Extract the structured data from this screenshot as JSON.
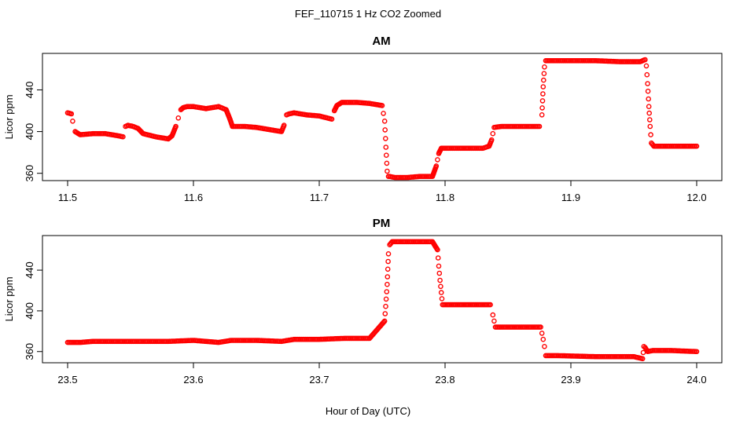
{
  "figure": {
    "title": "FEF_110715  1 Hz CO2 Zoomed",
    "xlabel": "Hour of Day (UTC)",
    "point_color": "#ff0000"
  },
  "chart_data": [
    {
      "type": "scatter",
      "title": "AM",
      "xlabel": "",
      "ylabel": "Licor ppm",
      "xlim": [
        11.48,
        12.02
      ],
      "ylim": [
        353,
        475
      ],
      "xticks": [
        11.5,
        11.6,
        11.7,
        11.8,
        11.9,
        12.0
      ],
      "xtick_labels": [
        "11.5",
        "11.6",
        "11.7",
        "11.8",
        "11.9",
        "12.0"
      ],
      "yticks": [
        360,
        400,
        440
      ],
      "ytick_labels": [
        "360",
        "400",
        "440"
      ],
      "grid": false,
      "series": [
        {
          "marker": "open-circle",
          "color": "#ff0000",
          "x": [
            11.5,
            11.503,
            11.504,
            11.506,
            11.51,
            11.52,
            11.53,
            11.54,
            11.544,
            11.546,
            11.548,
            11.552,
            11.556,
            11.56,
            11.57,
            11.58,
            11.583,
            11.586,
            11.588,
            11.59,
            11.592,
            11.595,
            11.6,
            11.61,
            11.62,
            11.626,
            11.629,
            11.631,
            11.64,
            11.65,
            11.66,
            11.67,
            11.672,
            11.674,
            11.676,
            11.68,
            11.69,
            11.7,
            11.71,
            11.712,
            11.714,
            11.718,
            11.73,
            11.74,
            11.75,
            11.752,
            11.753,
            11.754,
            11.755,
            11.756,
            11.76,
            11.77,
            11.78,
            11.79,
            11.793,
            11.795,
            11.797,
            11.8,
            11.81,
            11.82,
            11.83,
            11.835,
            11.837,
            11.839,
            11.845,
            11.86,
            11.875,
            11.877,
            11.878,
            11.879,
            11.88,
            11.885,
            11.9,
            11.92,
            11.94,
            11.955,
            11.959,
            11.96,
            11.961,
            11.962,
            11.963,
            11.964,
            11.966,
            11.98,
            12.0
          ],
          "y": [
            418,
            417,
            410,
            400,
            397,
            398,
            398,
            396,
            395,
            405,
            406,
            405,
            403,
            398,
            395,
            393,
            396,
            405,
            413,
            421,
            423,
            424,
            424,
            422,
            424,
            421,
            412,
            405,
            405,
            404,
            402,
            400,
            406,
            416,
            417,
            418,
            416,
            415,
            412,
            420,
            425,
            428,
            428,
            427,
            425,
            410,
            385,
            362,
            357,
            357,
            356,
            356,
            357,
            357,
            367,
            379,
            384,
            384,
            384,
            384,
            384,
            386,
            392,
            404,
            405,
            405,
            405,
            416,
            443,
            462,
            468,
            468,
            468,
            468,
            467,
            467,
            469,
            463,
            446,
            424,
            405,
            389,
            386,
            386,
            386
          ]
        }
      ]
    },
    {
      "type": "scatter",
      "title": "PM",
      "xlabel": "Hour of Day (UTC)",
      "ylabel": "Licor ppm",
      "xlim": [
        23.48,
        24.02
      ],
      "ylim": [
        349,
        474
      ],
      "xticks": [
        23.5,
        23.6,
        23.7,
        23.8,
        23.9,
        24.0
      ],
      "xtick_labels": [
        "23.5",
        "23.6",
        "23.7",
        "23.8",
        "23.9",
        "24.0"
      ],
      "yticks": [
        360,
        400,
        440
      ],
      "ytick_labels": [
        "360",
        "400",
        "440"
      ],
      "grid": false,
      "series": [
        {
          "marker": "open-circle",
          "color": "#ff0000",
          "x": [
            23.5,
            23.51,
            23.52,
            23.54,
            23.56,
            23.58,
            23.6,
            23.62,
            23.63,
            23.65,
            23.67,
            23.68,
            23.7,
            23.72,
            23.74,
            23.752,
            23.754,
            23.755,
            23.756,
            23.758,
            23.77,
            23.79,
            23.794,
            23.795,
            23.796,
            23.797,
            23.798,
            23.8,
            23.82,
            23.836,
            23.838,
            23.84,
            23.86,
            23.876,
            23.878,
            23.879,
            23.88,
            23.89,
            23.92,
            23.95,
            23.957,
            23.958,
            23.959,
            23.961,
            23.965,
            23.98,
            24.0
          ],
          "y": [
            369,
            369,
            370,
            370,
            370,
            370,
            371,
            369,
            371,
            371,
            370,
            372,
            372,
            373,
            373,
            390,
            426,
            456,
            465,
            468,
            468,
            468,
            460,
            444,
            430,
            418,
            406,
            406,
            406,
            406,
            396,
            384,
            384,
            384,
            372,
            365,
            356,
            356,
            355,
            355,
            353,
            365,
            364,
            360,
            361,
            361,
            360
          ]
        }
      ]
    }
  ]
}
